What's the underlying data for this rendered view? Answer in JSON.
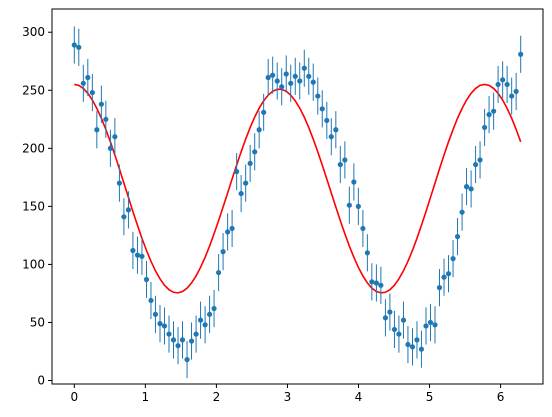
{
  "chart_data": {
    "type": "scatter",
    "title": "",
    "xlabel": "",
    "ylabel": "",
    "xlim": [
      -0.314,
      6.597
    ],
    "ylim": [
      -3,
      320
    ],
    "x_ticks": [
      0,
      1,
      2,
      3,
      4,
      5,
      6
    ],
    "x_tick_labels": [
      "0",
      "1",
      "2",
      "3",
      "4",
      "5",
      "6"
    ],
    "y_ticks": [
      0,
      50,
      100,
      150,
      200,
      250,
      300
    ],
    "y_tick_labels": [
      "0",
      "50",
      "100",
      "150",
      "200",
      "250",
      "300"
    ],
    "grid": false,
    "legend": "none",
    "colors": {
      "points": "#1f77b4",
      "curve": "#ff0000",
      "axes": "#000000"
    },
    "series": [
      {
        "kind": "errorbar",
        "x": [
          0.0,
          0.063,
          0.127,
          0.19,
          0.254,
          0.317,
          0.381,
          0.444,
          0.508,
          0.571,
          0.635,
          0.698,
          0.762,
          0.825,
          0.889,
          0.952,
          1.016,
          1.079,
          1.142,
          1.206,
          1.269,
          1.333,
          1.396,
          1.46,
          1.523,
          1.587,
          1.65,
          1.714,
          1.777,
          1.841,
          1.904,
          1.967,
          2.031,
          2.094,
          2.158,
          2.221,
          2.285,
          2.348,
          2.412,
          2.475,
          2.539,
          2.602,
          2.665,
          2.729,
          2.792,
          2.856,
          2.919,
          2.983,
          3.046,
          3.11,
          3.173,
          3.237,
          3.3,
          3.363,
          3.427,
          3.49,
          3.554,
          3.617,
          3.681,
          3.744,
          3.808,
          3.871,
          3.935,
          3.998,
          4.062,
          4.125,
          4.188,
          4.252,
          4.315,
          4.379,
          4.442,
          4.506,
          4.569,
          4.633,
          4.696,
          4.76,
          4.823,
          4.886,
          4.95,
          5.013,
          5.077,
          5.14,
          5.204,
          5.267,
          5.331,
          5.394,
          5.458,
          5.521,
          5.585,
          5.648,
          5.711,
          5.775,
          5.838,
          5.902,
          5.965,
          6.029,
          6.092,
          6.156,
          6.219,
          6.283
        ],
        "y": [
          289,
          287,
          256,
          261,
          248,
          216,
          238,
          225,
          200,
          210,
          170,
          141,
          147,
          112,
          108,
          107,
          87,
          69,
          57,
          49,
          47,
          40,
          35,
          30,
          35,
          18,
          34,
          40,
          52,
          48,
          57,
          62,
          93,
          111,
          128,
          131,
          180,
          161,
          170,
          187,
          197,
          216,
          231,
          261,
          263,
          258,
          253,
          264,
          256,
          262,
          258,
          269,
          262,
          257,
          245,
          234,
          224,
          210,
          216,
          186,
          190,
          151,
          171,
          150,
          131,
          110,
          85,
          84,
          82,
          54,
          59,
          44,
          40,
          52,
          31,
          29,
          35,
          27,
          47,
          50,
          48,
          80,
          89,
          92,
          105,
          124,
          145,
          167,
          165,
          186,
          190,
          218,
          229,
          232,
          255,
          259,
          255,
          245,
          249,
          281
        ],
        "yerr": 16
      },
      {
        "kind": "line",
        "x": [
          0.0,
          0.063,
          0.127,
          0.19,
          0.254,
          0.317,
          0.381,
          0.444,
          0.508,
          0.571,
          0.635,
          0.698,
          0.762,
          0.825,
          0.889,
          0.952,
          1.016,
          1.079,
          1.142,
          1.206,
          1.269,
          1.333,
          1.396,
          1.46,
          1.523,
          1.587,
          1.65,
          1.714,
          1.777,
          1.841,
          1.904,
          1.967,
          2.031,
          2.094,
          2.158,
          2.221,
          2.285,
          2.348,
          2.412,
          2.475,
          2.539,
          2.602,
          2.665,
          2.729,
          2.792,
          2.856,
          2.919,
          2.983,
          3.046,
          3.11,
          3.173,
          3.237,
          3.3,
          3.363,
          3.427,
          3.49,
          3.554,
          3.617,
          3.681,
          3.744,
          3.808,
          3.871,
          3.935,
          3.998,
          4.062,
          4.125,
          4.188,
          4.252,
          4.315,
          4.379,
          4.442,
          4.506,
          4.569,
          4.633,
          4.696,
          4.76,
          4.823,
          4.886,
          4.95,
          5.013,
          5.077,
          5.14,
          5.204,
          5.267,
          5.331,
          5.394,
          5.458,
          5.521,
          5.585,
          5.648,
          5.711,
          5.775,
          5.838,
          5.902,
          5.965,
          6.029,
          6.092,
          6.156,
          6.219,
          6.283
        ],
        "y": [
          255.0,
          254.2,
          251.6,
          247.4,
          241.6,
          234.4,
          225.9,
          216.2,
          205.6,
          194.2,
          182.3,
          170.0,
          157.7,
          145.5,
          133.7,
          122.5,
          112.1,
          102.7,
          94.5,
          87.6,
          82.1,
          78.2,
          76.0,
          75.5,
          76.7,
          79.6,
          84.1,
          90.1,
          97.5,
          106.1,
          115.8,
          126.4,
          137.7,
          149.5,
          161.5,
          173.6,
          185.5,
          197.0,
          207.9,
          217.9,
          226.9,
          234.6,
          240.9,
          245.8,
          249.1,
          250.8,
          250.8,
          249.1,
          245.8,
          240.9,
          234.6,
          226.9,
          217.9,
          207.9,
          197.0,
          185.5,
          173.6,
          161.5,
          149.5,
          137.7,
          126.4,
          115.8,
          106.1,
          97.5,
          90.1,
          84.1,
          79.6,
          76.7,
          75.5,
          76.0,
          78.2,
          82.1,
          87.6,
          94.5,
          102.7,
          112.1,
          122.5,
          133.7,
          145.5,
          157.7,
          170.0,
          182.3,
          194.2,
          205.6,
          216.2,
          225.9,
          234.4,
          241.6,
          247.4,
          251.6,
          254.2,
          255.0,
          254.2,
          251.6,
          247.4,
          241.6,
          234.4,
          225.9,
          216.2,
          205.6
        ]
      }
    ]
  }
}
